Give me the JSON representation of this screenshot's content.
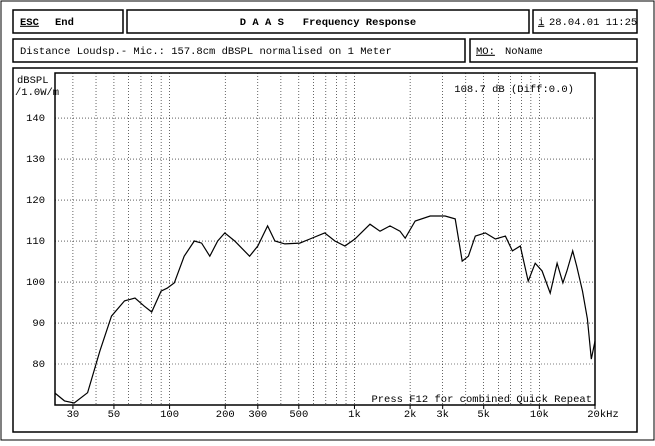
{
  "header": {
    "esc": "ESC",
    "end": "End",
    "title": "D A A S   Frequency Response",
    "info_key": "i",
    "datetime": "28.04.01 11:25"
  },
  "info": {
    "distance": "Distance Loudsp.- Mic.: 157.8cm dBSPL normalised on 1 Meter",
    "mo_key": "MO:",
    "name": "NoName"
  },
  "chart_data": {
    "type": "line",
    "ylabel": "dBSPL",
    "ylabel2": "/1.0W/m",
    "annotation_top": "108.7 dB (Diff:0.0)",
    "annotation_bottom": "Press F12 for combined Quick Repeat",
    "log_x": true,
    "grid": true,
    "color": "#000000",
    "xlim": [
      24,
      20000
    ],
    "ylim": [
      70,
      151
    ],
    "xticks": [
      30,
      50,
      100,
      200,
      300,
      500,
      {
        "value": 1000,
        "label": "1k"
      },
      {
        "value": 2000,
        "label": "2k"
      },
      {
        "value": 3000,
        "label": "3k"
      },
      {
        "value": 5000,
        "label": "5k"
      },
      {
        "value": 10000,
        "label": "10k"
      },
      {
        "value": 20000,
        "label": "20kHz"
      }
    ],
    "xgrid": [
      30,
      40,
      50,
      60,
      70,
      80,
      90,
      100,
      200,
      300,
      400,
      500,
      600,
      700,
      800,
      900,
      1000,
      2000,
      3000,
      4000,
      5000,
      6000,
      7000,
      8000,
      9000,
      10000,
      20000
    ],
    "yticks": [
      80,
      90,
      100,
      110,
      120,
      130,
      140
    ],
    "x": [
      24,
      27,
      30.5,
      36,
      42,
      48.5,
      57,
      65,
      73,
      80,
      90,
      97,
      106,
      120,
      136,
      149,
      165,
      182,
      199,
      225,
      271,
      300,
      339,
      371,
      420,
      506,
      574,
      690,
      784,
      888,
      1006,
      1213,
      1374,
      1557,
      1764,
      1881,
      2130,
      2568,
      3093,
      3505,
      3828,
      4131,
      4504,
      5104,
      5783,
      6555,
      7148,
      7886,
      8704,
      9491,
      10349,
      11448,
      12467,
      13416,
      14087,
      15150,
      15925,
      17108,
      18190,
      19103,
      20000
    ],
    "series": [
      {
        "name": "Response",
        "values": [
          72.9,
          71,
          70.5,
          73,
          83.2,
          91.7,
          95.4,
          96.1,
          94.1,
          92.7,
          97.8,
          98.5,
          99.8,
          106.3,
          110,
          109.5,
          106.3,
          110,
          112,
          110,
          106.3,
          108.8,
          113.7,
          110,
          109.3,
          109.5,
          110.5,
          112,
          110,
          108.8,
          110.5,
          114.1,
          112.4,
          113.7,
          112.4,
          110.7,
          114.9,
          116.1,
          116.1,
          115.4,
          105.1,
          106.3,
          111.2,
          112,
          110.5,
          111.2,
          107.6,
          108.8,
          100.2,
          104.6,
          102.7,
          97.3,
          104.6,
          99.8,
          102.7,
          107.6,
          103.9,
          97.8,
          91,
          81.2,
          85.6
        ]
      }
    ]
  }
}
